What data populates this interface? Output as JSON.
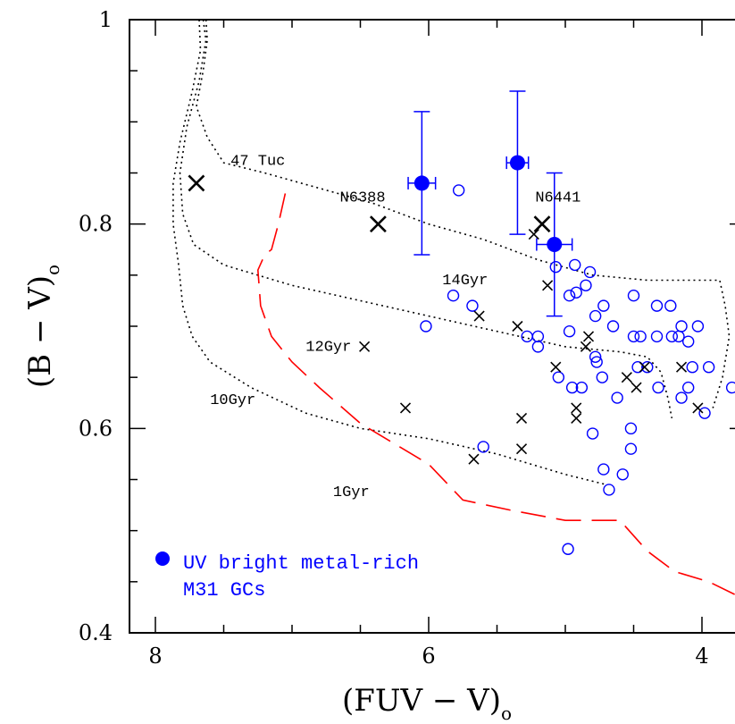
{
  "chart_data": {
    "type": "scatter",
    "xlabel": "(FUV − V)",
    "xlabel_sub": "o",
    "ylabel": "(B − V)",
    "ylabel_sub": "o",
    "xlim": [
      8.4,
      3.7
    ],
    "ylim": [
      0.4,
      1.0
    ],
    "xticks": [
      {
        "value": 8,
        "label": "8"
      },
      {
        "value": 6,
        "label": "6"
      },
      {
        "value": 4,
        "label": "4"
      }
    ],
    "yticks": [
      {
        "value": 0.4,
        "label": "0.4"
      },
      {
        "value": 0.6,
        "label": "0.6"
      },
      {
        "value": 0.8,
        "label": "0.8"
      },
      {
        "value": 1.0,
        "label": "1"
      }
    ],
    "colors": {
      "blue": "#0000ff",
      "red": "#ff0000",
      "black": "#000000"
    },
    "series": [
      {
        "name": "UV bright metal-rich M31 GCs",
        "marker": "filled-circle",
        "color": "#0000ff",
        "points": [
          {
            "x": 6.05,
            "y": 0.84,
            "xerr": 0.1,
            "yerr": 0.07
          },
          {
            "x": 5.35,
            "y": 0.86,
            "xerr": 0.08,
            "yerr": 0.07
          },
          {
            "x": 5.08,
            "y": 0.78,
            "xerr": 0.13,
            "yerr": 0.07
          }
        ]
      },
      {
        "marker": "open-circle",
        "color": "#0000ff",
        "points": [
          [
            5.78,
            0.833
          ],
          [
            6.02,
            0.7
          ],
          [
            5.82,
            0.73
          ],
          [
            5.68,
            0.72
          ],
          [
            5.07,
            0.758
          ],
          [
            4.93,
            0.76
          ],
          [
            4.82,
            0.753
          ],
          [
            5.2,
            0.69
          ],
          [
            5.28,
            0.69
          ],
          [
            4.97,
            0.73
          ],
          [
            4.92,
            0.733
          ],
          [
            4.85,
            0.74
          ],
          [
            4.72,
            0.72
          ],
          [
            4.78,
            0.71
          ],
          [
            4.65,
            0.7
          ],
          [
            5.2,
            0.68
          ],
          [
            4.97,
            0.695
          ],
          [
            4.78,
            0.67
          ],
          [
            4.77,
            0.665
          ],
          [
            4.5,
            0.73
          ],
          [
            4.33,
            0.72
          ],
          [
            4.23,
            0.72
          ],
          [
            4.5,
            0.69
          ],
          [
            4.45,
            0.69
          ],
          [
            4.33,
            0.69
          ],
          [
            4.22,
            0.69
          ],
          [
            4.15,
            0.7
          ],
          [
            4.03,
            0.7
          ],
          [
            4.17,
            0.69
          ],
          [
            4.1,
            0.685
          ],
          [
            5.05,
            0.65
          ],
          [
            4.95,
            0.64
          ],
          [
            4.88,
            0.64
          ],
          [
            4.73,
            0.65
          ],
          [
            4.62,
            0.63
          ],
          [
            4.47,
            0.66
          ],
          [
            4.4,
            0.66
          ],
          [
            4.32,
            0.64
          ],
          [
            4.15,
            0.63
          ],
          [
            4.1,
            0.64
          ],
          [
            4.07,
            0.66
          ],
          [
            3.95,
            0.66
          ],
          [
            3.78,
            0.64
          ],
          [
            3.7,
            0.67
          ],
          [
            3.98,
            0.615
          ],
          [
            5.6,
            0.582
          ],
          [
            4.8,
            0.595
          ],
          [
            4.52,
            0.6
          ],
          [
            4.52,
            0.58
          ],
          [
            4.72,
            0.56
          ],
          [
            4.68,
            0.54
          ],
          [
            4.58,
            0.555
          ],
          [
            4.98,
            0.482
          ]
        ]
      },
      {
        "marker": "cross",
        "color": "#000000",
        "points": [
          [
            5.23,
            0.79
          ],
          [
            5.13,
            0.74
          ],
          [
            5.63,
            0.71
          ],
          [
            5.35,
            0.7
          ],
          [
            4.83,
            0.69
          ],
          [
            4.85,
            0.68
          ],
          [
            5.07,
            0.66
          ],
          [
            4.55,
            0.65
          ],
          [
            4.48,
            0.64
          ],
          [
            4.42,
            0.66
          ],
          [
            4.15,
            0.66
          ],
          [
            4.03,
            0.62
          ],
          [
            4.92,
            0.62
          ],
          [
            4.92,
            0.61
          ],
          [
            5.32,
            0.61
          ],
          [
            5.32,
            0.58
          ],
          [
            5.67,
            0.57
          ],
          [
            6.47,
            0.68
          ],
          [
            6.17,
            0.62
          ]
        ]
      },
      {
        "marker": "big-cross",
        "color": "#000000",
        "points": [
          {
            "x": 7.7,
            "y": 0.84,
            "label": "47 Tuc"
          },
          {
            "x": 6.37,
            "y": 0.8,
            "label": "N6388"
          },
          {
            "x": 5.17,
            "y": 0.8,
            "label": "N6441"
          }
        ]
      }
    ],
    "isochrones": [
      {
        "label": "14Gyr",
        "style": "dotted",
        "color": "#000000",
        "points": [
          [
            7.63,
            1.0
          ],
          [
            7.62,
            0.98
          ],
          [
            7.65,
            0.95
          ],
          [
            7.7,
            0.915
          ],
          [
            7.62,
            0.885
          ],
          [
            7.5,
            0.86
          ],
          [
            7.2,
            0.85
          ],
          [
            6.8,
            0.835
          ],
          [
            6.4,
            0.82
          ],
          [
            6.0,
            0.8
          ],
          [
            5.6,
            0.785
          ],
          [
            5.2,
            0.765
          ],
          [
            4.8,
            0.75
          ],
          [
            4.4,
            0.745
          ],
          [
            4.0,
            0.745
          ],
          [
            3.87,
            0.745
          ],
          [
            3.83,
            0.72
          ],
          [
            3.8,
            0.69
          ],
          [
            3.85,
            0.65
          ],
          [
            3.92,
            0.62
          ]
        ]
      },
      {
        "label": "12Gyr",
        "style": "dotted",
        "color": "#000000",
        "points": [
          [
            7.65,
            1.0
          ],
          [
            7.63,
            0.98
          ],
          [
            7.68,
            0.94
          ],
          [
            7.77,
            0.895
          ],
          [
            7.82,
            0.85
          ],
          [
            7.8,
            0.81
          ],
          [
            7.72,
            0.78
          ],
          [
            7.5,
            0.76
          ],
          [
            7.0,
            0.74
          ],
          [
            6.5,
            0.725
          ],
          [
            6.0,
            0.71
          ],
          [
            5.5,
            0.695
          ],
          [
            5.0,
            0.68
          ],
          [
            4.6,
            0.675
          ],
          [
            4.4,
            0.67
          ],
          [
            4.3,
            0.655
          ],
          [
            4.25,
            0.63
          ],
          [
            4.22,
            0.61
          ]
        ]
      },
      {
        "label": "10Gyr",
        "style": "dotted",
        "color": "#000000",
        "points": [
          [
            7.68,
            1.0
          ],
          [
            7.67,
            0.97
          ],
          [
            7.73,
            0.93
          ],
          [
            7.82,
            0.88
          ],
          [
            7.87,
            0.84
          ],
          [
            7.87,
            0.8
          ],
          [
            7.83,
            0.76
          ],
          [
            7.8,
            0.72
          ],
          [
            7.73,
            0.69
          ],
          [
            7.6,
            0.665
          ],
          [
            7.3,
            0.64
          ],
          [
            6.9,
            0.615
          ],
          [
            6.5,
            0.6
          ],
          [
            6.0,
            0.59
          ],
          [
            5.5,
            0.575
          ],
          [
            5.0,
            0.555
          ],
          [
            4.7,
            0.545
          ]
        ]
      },
      {
        "label": "1Gyr",
        "style": "dashed",
        "color": "#ff0000",
        "points": [
          [
            7.05,
            0.83
          ],
          [
            7.1,
            0.8
          ],
          [
            7.15,
            0.775
          ],
          [
            7.2,
            0.77
          ],
          [
            7.25,
            0.755
          ],
          [
            7.23,
            0.72
          ],
          [
            7.15,
            0.69
          ],
          [
            7.0,
            0.665
          ],
          [
            6.8,
            0.64
          ],
          [
            6.5,
            0.605
          ],
          [
            6.25,
            0.585
          ],
          [
            6.0,
            0.565
          ],
          [
            5.75,
            0.53
          ],
          [
            5.4,
            0.52
          ],
          [
            5.0,
            0.51
          ],
          [
            4.6,
            0.51
          ],
          [
            4.4,
            0.48
          ],
          [
            4.2,
            0.46
          ],
          [
            3.95,
            0.45
          ],
          [
            3.72,
            0.435
          ]
        ]
      }
    ],
    "annotations": [
      {
        "text": "47 Tuc",
        "x": 7.45,
        "y": 0.858,
        "color": "#000000"
      },
      {
        "text": "N6388",
        "x": 6.65,
        "y": 0.822,
        "color": "#000000"
      },
      {
        "text": "N6441",
        "x": 5.22,
        "y": 0.822,
        "color": "#000000"
      },
      {
        "text": "14Gyr",
        "x": 5.9,
        "y": 0.741,
        "color": "#000000"
      },
      {
        "text": "12Gyr",
        "x": 6.9,
        "y": 0.676,
        "color": "#000000"
      },
      {
        "text": "10Gyr",
        "x": 7.6,
        "y": 0.624,
        "color": "#000000"
      },
      {
        "text": "1Gyr",
        "x": 6.7,
        "y": 0.534,
        "color": "#ff0000"
      }
    ],
    "legend": {
      "position": "bottom-left",
      "marker": "filled-circle",
      "color": "#0000ff",
      "lines": [
        "UV bright metal-rich",
        "M31 GCs"
      ]
    }
  }
}
